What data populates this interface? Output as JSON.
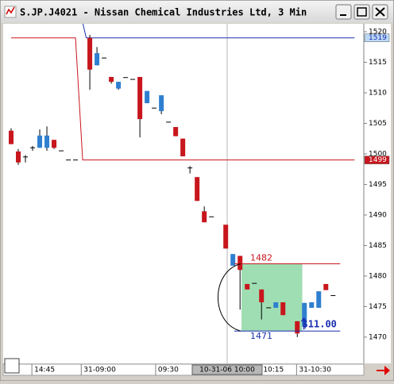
{
  "window": {
    "title": "S.JP.J4021 - Nissan Chemical Industries Ltd, 3 Min"
  },
  "chart_data": {
    "type": "candlestick",
    "x": [
      0,
      1,
      2,
      3,
      4,
      5,
      6,
      7,
      8,
      9,
      11,
      12,
      13,
      14,
      15,
      16,
      17,
      18,
      19,
      20,
      21,
      22,
      23,
      24,
      25,
      26,
      27,
      28,
      30,
      31,
      32,
      33,
      34,
      35,
      36,
      37,
      38,
      40,
      41,
      42,
      43,
      44,
      45
    ],
    "open": [
      1503.8,
      1500.4,
      1499.5,
      1501,
      1501,
      1501,
      1502.3,
      1500.5,
      1499,
      1499,
      1519,
      1514.5,
      1515.7,
      1512.6,
      1510.7,
      1512.5,
      1512.2,
      1512.6,
      1508.3,
      1507.5,
      1507,
      1505.2,
      1504.4,
      1502.5,
      1497.7,
      1496.2,
      1490.6,
      1489.7,
      1488.4,
      1481.7,
      1483.3,
      1478.7,
      1478.8,
      1477.8,
      1474.8,
      1474.8,
      1475.7,
      1472.6,
      1471.7,
      1474.8,
      1474.8,
      1478.7,
      1476.8
    ],
    "high": [
      1504.2,
      1500.8,
      1499.8,
      1501.3,
      1504,
      1504.5,
      1502.3,
      1500.5,
      1499,
      1499,
      1519.5,
      1517.5,
      1515.7,
      1512.6,
      1511.8,
      1512.5,
      1512.2,
      1512.6,
      1510.3,
      1507.5,
      1509.6,
      1505.2,
      1504.4,
      1502.5,
      1498,
      1496.2,
      1491.4,
      1489.7,
      1488.4,
      1483.6,
      1483.3,
      1478.7,
      1478.8,
      1477.8,
      1474.8,
      1475.7,
      1475.7,
      1472.6,
      1475.6,
      1475.7,
      1477.5,
      1478.7,
      1476.8
    ],
    "low": [
      1501.6,
      1498.2,
      1498.6,
      1500.5,
      1501,
      1500.5,
      1500.8,
      1500.5,
      1499,
      1499,
      1510.5,
      1514.5,
      1515.7,
      1511.5,
      1510.5,
      1512.5,
      1512.2,
      1502.7,
      1508.3,
      1507.5,
      1506.5,
      1505.2,
      1502.9,
      1499.6,
      1496.8,
      1492.3,
      1488.8,
      1489.7,
      1484.5,
      1481.7,
      1474.5,
      1477.8,
      1478.8,
      1472.9,
      1474.8,
      1474.8,
      1473.6,
      1470,
      1471.7,
      1474.8,
      1474.8,
      1477.7,
      1476.8
    ],
    "close": [
      1501.6,
      1498.6,
      1499.5,
      1501,
      1503,
      1503,
      1501,
      1500.5,
      1499,
      1499,
      1513.8,
      1516.5,
      1515.7,
      1511.8,
      1511.8,
      1512.5,
      1512.2,
      1505.7,
      1510.3,
      1507.5,
      1509.6,
      1505.2,
      1502.9,
      1499.6,
      1497.7,
      1492.3,
      1488.8,
      1489.7,
      1484.5,
      1483.6,
      1481,
      1477.8,
      1478.8,
      1475.7,
      1474.8,
      1475.7,
      1473.6,
      1470.6,
      1475.6,
      1475.7,
      1477.5,
      1477.7,
      1476.8
    ],
    "up_color": "#2f7fd0",
    "down_color": "#c8161d",
    "xlim": [
      -1,
      49.3
    ],
    "ylim": [
      1465.7,
      1521.3
    ],
    "yticks": [
      1470,
      1475,
      1480,
      1485,
      1490,
      1495,
      1500,
      1505,
      1510,
      1515,
      1520
    ],
    "xticks": [
      {
        "value": 2.9,
        "label": "14:45"
      },
      {
        "value": 9.8,
        "label": "31-09:00"
      },
      {
        "value": 20.2,
        "label": "09:30"
      },
      {
        "value": 34.9,
        "label": "10:15"
      },
      {
        "value": 39.9,
        "label": "31-10:30"
      }
    ],
    "cursor": {
      "x": 30.2,
      "label": "10-31-06 10:00"
    },
    "lines": [
      {
        "color": "#c8161d",
        "x": [
          0,
          9,
          10,
          48
        ],
        "y": [
          1519,
          1519,
          1499,
          1499
        ]
      },
      {
        "color": "#1a2fb0",
        "x": [
          9.9,
          10.5,
          48
        ],
        "y": [
          1522,
          1519,
          1519
        ]
      }
    ],
    "markers": [
      {
        "value": 1519,
        "color": "#1a2fb0",
        "background": "#bcd8f4"
      },
      {
        "value": 1499,
        "color": "#ffffff",
        "background": "#c8161d"
      }
    ],
    "measure": {
      "high": 1482,
      "low": 1471,
      "high_color": "#c8161d",
      "low_color": "#1a2fb0",
      "box_color": "#7fd39a",
      "line_x": [
        31.2,
        46
      ],
      "box_x": [
        32.2,
        40.7
      ],
      "annotation": "$11.00"
    }
  }
}
